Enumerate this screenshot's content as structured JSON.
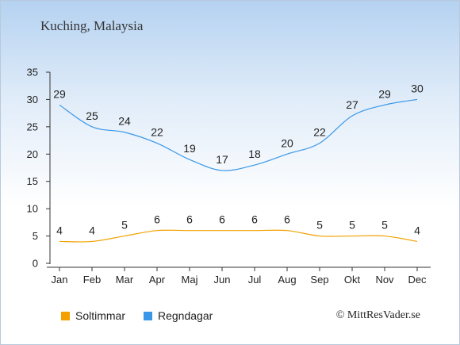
{
  "header": {
    "title": "Kuching, Malaysia"
  },
  "chart_data": {
    "type": "line",
    "categories": [
      "Jan",
      "Feb",
      "Mar",
      "Apr",
      "Maj",
      "Jun",
      "Jul",
      "Aug",
      "Sep",
      "Okt",
      "Nov",
      "Dec"
    ],
    "ylim": [
      0,
      35
    ],
    "yticks": [
      0,
      5,
      10,
      15,
      20,
      25,
      30,
      35
    ],
    "series": [
      {
        "name": "Soltimmar",
        "color": "#f2a100",
        "values": [
          4,
          4,
          5,
          6,
          6,
          6,
          6,
          6,
          5,
          5,
          5,
          4
        ]
      },
      {
        "name": "Regndagar",
        "color": "#3a97e8",
        "values": [
          29,
          25,
          24,
          22,
          19,
          17,
          18,
          20,
          22,
          27,
          29,
          30
        ]
      }
    ],
    "legend_position": "bottom-left",
    "grid": false
  },
  "legend": {
    "items": [
      {
        "label": "Soltimmar",
        "color": "#f2a100"
      },
      {
        "label": "Regndagar",
        "color": "#3a97e8"
      }
    ]
  },
  "footer": {
    "credit": "© MittResVader.se"
  }
}
